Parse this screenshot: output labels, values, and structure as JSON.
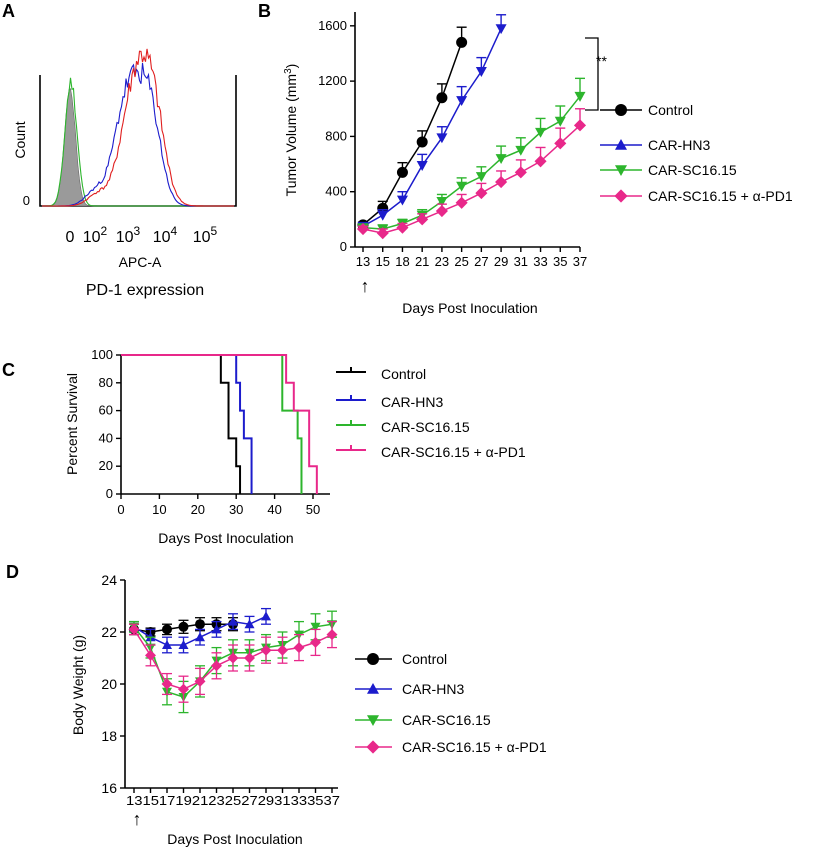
{
  "panels": {
    "A": {
      "letter": "A",
      "ylabel": "Count",
      "y_zero": "0",
      "xticks": [
        "0",
        "10",
        "10",
        "10",
        "10"
      ],
      "xtick_exp": [
        "",
        "2",
        "3",
        "4",
        "5"
      ],
      "xlabel": "APC-A",
      "caption": "PD-1 expression",
      "colors": {
        "shaded": "#9a9a9a",
        "green": "#2db52d",
        "blue": "#1c1ccc",
        "red": "#e01f1f"
      }
    },
    "B": {
      "letter": "B",
      "ylabel_main": "Tumor Volume (mm",
      "ylabel_sup": "3",
      "ylabel_end": ")",
      "xlabel": "Days Post Inoculation",
      "significance": "**",
      "arrow": "↑"
    },
    "C": {
      "letter": "C",
      "ylabel": "Percent Survival",
      "xlabel": "Days Post Inoculation"
    },
    "D": {
      "letter": "D",
      "ylabel": "Body Weight (g)",
      "xlabel": "Days Post Inoculation",
      "arrow": "↑"
    }
  },
  "chart_data": [
    {
      "panel": "B",
      "type": "line",
      "ylabel": "Tumor Volume (mm3)",
      "xlabel": "Days Post Inoculation",
      "x_ticks": [
        13,
        15,
        18,
        21,
        23,
        25,
        27,
        29,
        31,
        33,
        35,
        37
      ],
      "ylim": [
        0,
        1700
      ],
      "y_ticks": [
        0,
        400,
        800,
        1200,
        1600
      ],
      "series": [
        {
          "name": "Control",
          "color": "#000000",
          "marker": "circle",
          "x": [
            13,
            15,
            18,
            21,
            23,
            25
          ],
          "y": [
            160,
            280,
            540,
            760,
            1080,
            1480
          ],
          "err": [
            20,
            50,
            70,
            80,
            100,
            110
          ]
        },
        {
          "name": "CAR-HN3",
          "color": "#1c1ccc",
          "marker": "triangle-down",
          "legend_marker": "triangle-up",
          "x": [
            13,
            15,
            18,
            21,
            23,
            25,
            27,
            29
          ],
          "y": [
            150,
            230,
            340,
            590,
            790,
            1060,
            1270,
            1580
          ],
          "err": [
            20,
            40,
            60,
            80,
            80,
            100,
            100,
            100
          ]
        },
        {
          "name": "CAR-SC16.15",
          "color": "#2db52d",
          "marker": "triangle-down",
          "x": [
            13,
            15,
            18,
            21,
            23,
            25,
            27,
            29,
            31,
            33,
            35,
            37
          ],
          "y": [
            140,
            130,
            170,
            230,
            330,
            440,
            510,
            640,
            700,
            830,
            910,
            1090
          ],
          "err": [
            20,
            30,
            30,
            40,
            50,
            60,
            70,
            90,
            90,
            100,
            110,
            130
          ]
        },
        {
          "name": "CAR-SC16.15 + α-PD1",
          "color": "#e8288a",
          "marker": "diamond",
          "x": [
            13,
            15,
            18,
            21,
            23,
            25,
            27,
            29,
            31,
            33,
            35,
            37
          ],
          "y": [
            130,
            100,
            140,
            200,
            260,
            320,
            390,
            470,
            540,
            620,
            750,
            880
          ],
          "err": [
            20,
            30,
            30,
            40,
            50,
            60,
            70,
            80,
            90,
            100,
            110,
            120
          ]
        }
      ]
    },
    {
      "panel": "C",
      "type": "line",
      "ylabel": "Percent Survival",
      "xlabel": "Days Post Inoculation",
      "xlim": [
        0,
        55
      ],
      "x_ticks": [
        0,
        10,
        20,
        30,
        40,
        50
      ],
      "ylim": [
        0,
        100
      ],
      "y_ticks": [
        0,
        20,
        40,
        60,
        80,
        100
      ],
      "series": [
        {
          "name": "Control",
          "color": "#000000",
          "x": [
            0,
            26,
            26,
            28,
            28,
            30,
            30,
            31,
            31
          ],
          "y": [
            100,
            100,
            80,
            80,
            40,
            40,
            20,
            20,
            0
          ]
        },
        {
          "name": "CAR-HN3",
          "color": "#1c1ccc",
          "x": [
            0,
            30,
            30,
            31,
            31,
            32,
            32,
            34,
            34
          ],
          "y": [
            100,
            100,
            80,
            80,
            60,
            60,
            40,
            40,
            0
          ]
        },
        {
          "name": "CAR-SC16.15",
          "color": "#2db52d",
          "x": [
            0,
            42,
            42,
            46,
            46,
            47,
            47
          ],
          "y": [
            100,
            100,
            60,
            60,
            40,
            40,
            0
          ]
        },
        {
          "name": "CAR-SC16.15 + α-PD1",
          "color": "#e8288a",
          "x": [
            0,
            43,
            43,
            45,
            45,
            49,
            49,
            51,
            51
          ],
          "y": [
            100,
            100,
            80,
            80,
            60,
            60,
            20,
            20,
            0
          ]
        }
      ]
    },
    {
      "panel": "D",
      "type": "line",
      "ylabel": "Body Weight (g)",
      "xlabel": "Days Post Inoculation",
      "x_ticks": [
        13,
        15,
        17,
        19,
        21,
        23,
        25,
        27,
        29,
        31,
        33,
        35,
        37
      ],
      "x_tick_text": "13151719212325272931333537",
      "ylim": [
        16,
        24
      ],
      "y_ticks": [
        16,
        18,
        20,
        22,
        24
      ],
      "series": [
        {
          "name": "Control",
          "color": "#000000",
          "marker": "circle",
          "x": [
            13,
            15,
            17,
            19,
            21,
            23,
            25
          ],
          "y": [
            22.1,
            22.0,
            22.1,
            22.2,
            22.3,
            22.3,
            22.3
          ],
          "err": [
            0.2,
            0.15,
            0.2,
            0.25,
            0.25,
            0.25,
            0.25
          ]
        },
        {
          "name": "CAR-HN3",
          "color": "#1c1ccc",
          "marker": "triangle-up",
          "x": [
            13,
            15,
            17,
            19,
            21,
            23,
            25,
            27,
            29
          ],
          "y": [
            22.2,
            21.8,
            21.5,
            21.5,
            21.8,
            22.1,
            22.4,
            22.3,
            22.6
          ],
          "err": [
            0.2,
            0.3,
            0.3,
            0.3,
            0.3,
            0.3,
            0.3,
            0.3,
            0.3
          ]
        },
        {
          "name": "CAR-SC16.15",
          "color": "#2db52d",
          "marker": "triangle-down",
          "x": [
            13,
            15,
            17,
            19,
            21,
            23,
            25,
            27,
            29,
            31,
            33,
            35,
            37
          ],
          "y": [
            22.2,
            21.4,
            19.7,
            19.5,
            20.1,
            20.9,
            21.2,
            21.2,
            21.4,
            21.5,
            21.9,
            22.2,
            22.3
          ],
          "err": [
            0.2,
            0.4,
            0.5,
            0.6,
            0.6,
            0.5,
            0.5,
            0.5,
            0.5,
            0.5,
            0.5,
            0.5,
            0.5
          ]
        },
        {
          "name": "CAR-SC16.15 + α-PD1",
          "color": "#e8288a",
          "marker": "diamond",
          "x": [
            13,
            15,
            17,
            19,
            21,
            23,
            25,
            27,
            29,
            31,
            33,
            35,
            37
          ],
          "y": [
            22.1,
            21.1,
            20.0,
            19.8,
            20.1,
            20.7,
            21.0,
            21.0,
            21.3,
            21.3,
            21.4,
            21.6,
            21.9
          ],
          "err": [
            0.2,
            0.4,
            0.4,
            0.5,
            0.5,
            0.5,
            0.5,
            0.5,
            0.5,
            0.5,
            0.5,
            0.5,
            0.5
          ]
        }
      ]
    }
  ]
}
